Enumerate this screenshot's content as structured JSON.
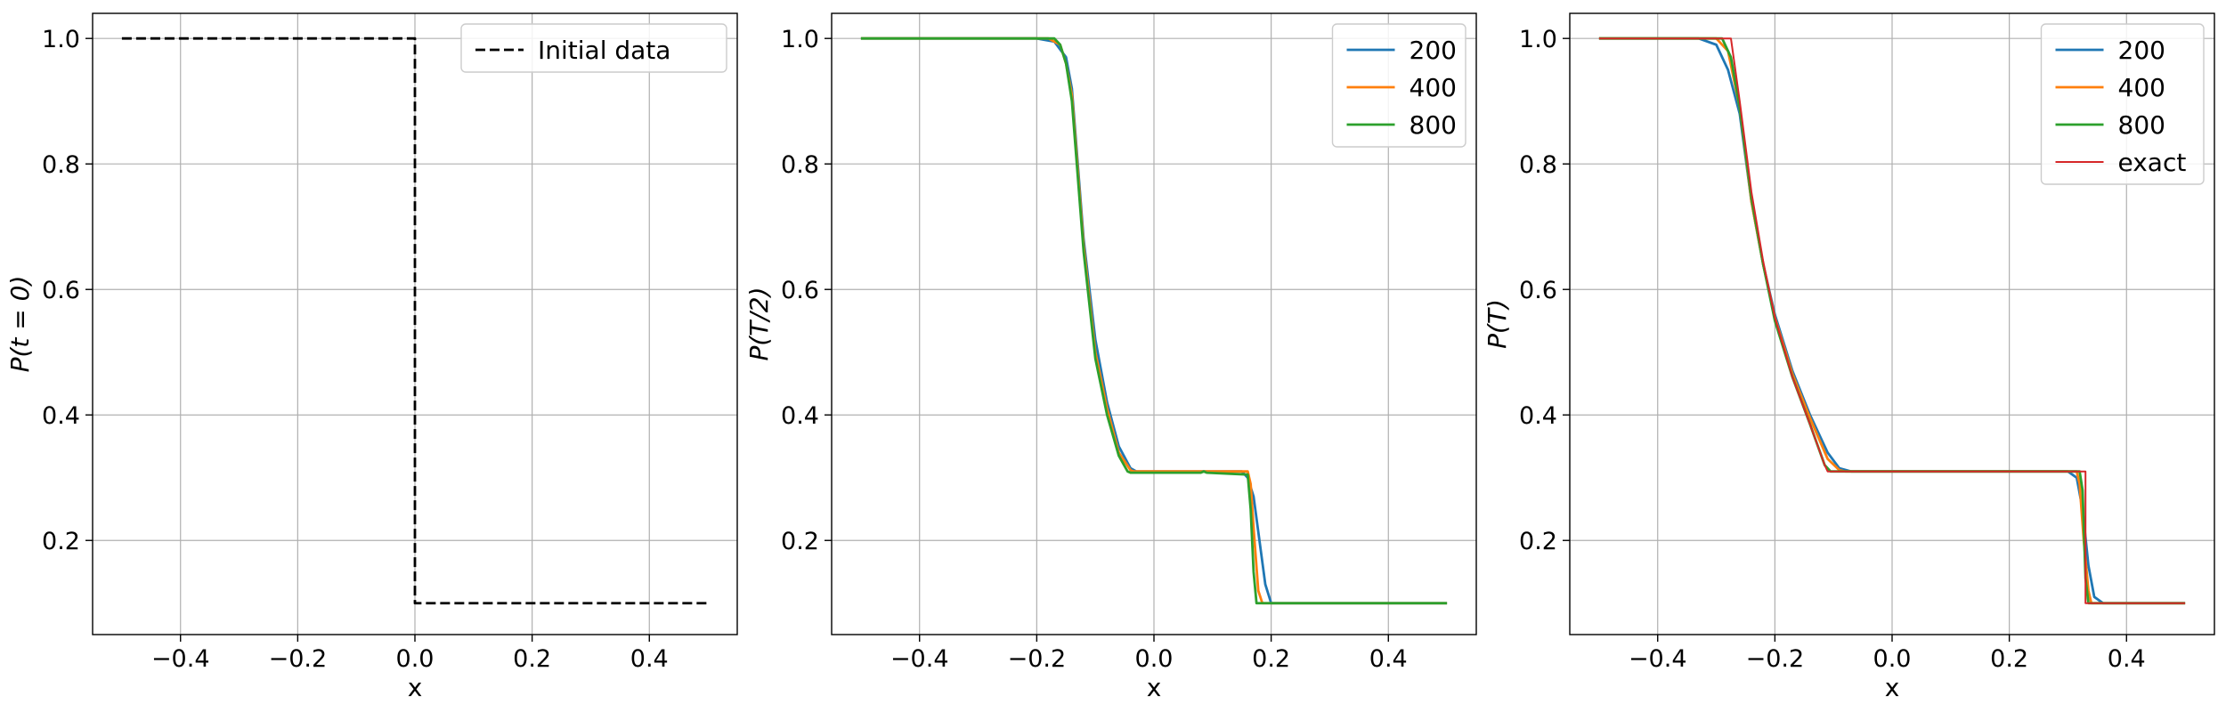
{
  "chart_data": [
    {
      "type": "line",
      "xlabel": "x",
      "ylabel": "P(t = 0)",
      "xlim": [
        -0.55,
        0.55
      ],
      "ylim": [
        0.05,
        1.04
      ],
      "xticks": [
        -0.4,
        -0.2,
        0.0,
        0.2,
        0.4
      ],
      "xtick_labels": [
        "−0.4",
        "−0.2",
        "0.0",
        "0.2",
        "0.4"
      ],
      "yticks": [
        0.2,
        0.4,
        0.6,
        0.8,
        1.0
      ],
      "ytick_labels": [
        "0.2",
        "0.4",
        "0.6",
        "0.8",
        "1.0"
      ],
      "grid": true,
      "legend": "top-right",
      "series": [
        {
          "name": "Initial data",
          "color": "#000000",
          "dash": "dashed",
          "x": [
            -0.5,
            0.0,
            0.0,
            0.5
          ],
          "y": [
            1.0,
            1.0,
            0.1,
            0.1
          ]
        }
      ]
    },
    {
      "type": "line",
      "xlabel": "x",
      "ylabel": "P(T/2)",
      "xlim": [
        -0.55,
        0.55
      ],
      "ylim": [
        0.05,
        1.04
      ],
      "xticks": [
        -0.4,
        -0.2,
        0.0,
        0.2,
        0.4
      ],
      "xtick_labels": [
        "−0.4",
        "−0.2",
        "0.0",
        "0.2",
        "0.4"
      ],
      "yticks": [
        0.2,
        0.4,
        0.6,
        0.8,
        1.0
      ],
      "ytick_labels": [
        "0.2",
        "0.4",
        "0.6",
        "0.8",
        "1.0"
      ],
      "grid": true,
      "legend": "top-right",
      "series": [
        {
          "name": "200",
          "color": "#1f77b4",
          "x": [
            -0.5,
            -0.2,
            -0.17,
            -0.15,
            -0.14,
            -0.13,
            -0.12,
            -0.1,
            -0.08,
            -0.06,
            -0.04,
            -0.03,
            0.0,
            0.08,
            0.15,
            0.16,
            0.17,
            0.18,
            0.19,
            0.2,
            0.5
          ],
          "y": [
            1.0,
            1.0,
            0.995,
            0.97,
            0.92,
            0.8,
            0.68,
            0.52,
            0.42,
            0.35,
            0.315,
            0.31,
            0.31,
            0.31,
            0.31,
            0.3,
            0.27,
            0.2,
            0.13,
            0.1,
            0.1
          ]
        },
        {
          "name": "400",
          "color": "#ff7f0e",
          "x": [
            -0.5,
            -0.18,
            -0.16,
            -0.15,
            -0.14,
            -0.13,
            -0.12,
            -0.1,
            -0.08,
            -0.06,
            -0.04,
            -0.035,
            0.0,
            0.08,
            0.16,
            0.165,
            0.17,
            0.178,
            0.185,
            0.5
          ],
          "y": [
            1.0,
            1.0,
            0.99,
            0.96,
            0.91,
            0.79,
            0.67,
            0.5,
            0.41,
            0.34,
            0.312,
            0.31,
            0.31,
            0.31,
            0.31,
            0.29,
            0.22,
            0.12,
            0.1,
            0.1
          ]
        },
        {
          "name": "800",
          "color": "#2ca02c",
          "x": [
            -0.5,
            -0.17,
            -0.16,
            -0.15,
            -0.14,
            -0.13,
            -0.12,
            -0.1,
            -0.08,
            -0.06,
            -0.045,
            -0.04,
            0.0,
            0.08,
            0.085,
            0.09,
            0.16,
            0.165,
            0.17,
            0.175,
            0.5
          ],
          "y": [
            1.0,
            1.0,
            0.99,
            0.96,
            0.9,
            0.78,
            0.66,
            0.49,
            0.4,
            0.335,
            0.31,
            0.308,
            0.308,
            0.308,
            0.31,
            0.308,
            0.305,
            0.25,
            0.15,
            0.1,
            0.1
          ]
        }
      ]
    },
    {
      "type": "line",
      "xlabel": "x",
      "ylabel": "P(T)",
      "xlim": [
        -0.55,
        0.55
      ],
      "ylim": [
        0.05,
        1.04
      ],
      "xticks": [
        -0.4,
        -0.2,
        0.0,
        0.2,
        0.4
      ],
      "xtick_labels": [
        "−0.4",
        "−0.2",
        "0.0",
        "0.2",
        "0.4"
      ],
      "yticks": [
        0.2,
        0.4,
        0.6,
        0.8,
        1.0
      ],
      "ytick_labels": [
        "0.2",
        "0.4",
        "0.6",
        "0.8",
        "1.0"
      ],
      "grid": true,
      "legend": "top-right",
      "series": [
        {
          "name": "200",
          "color": "#1f77b4",
          "x": [
            -0.5,
            -0.33,
            -0.3,
            -0.28,
            -0.26,
            -0.24,
            -0.22,
            -0.2,
            -0.17,
            -0.14,
            -0.11,
            -0.09,
            -0.07,
            0.0,
            0.2,
            0.3,
            0.315,
            0.325,
            0.335,
            0.345,
            0.36,
            0.5
          ],
          "y": [
            1.0,
            1.0,
            0.99,
            0.95,
            0.88,
            0.74,
            0.64,
            0.56,
            0.47,
            0.4,
            0.34,
            0.315,
            0.31,
            0.31,
            0.31,
            0.31,
            0.3,
            0.25,
            0.16,
            0.11,
            0.1,
            0.1
          ]
        },
        {
          "name": "400",
          "color": "#ff7f0e",
          "x": [
            -0.5,
            -0.3,
            -0.28,
            -0.26,
            -0.24,
            -0.22,
            -0.2,
            -0.17,
            -0.14,
            -0.11,
            -0.09,
            -0.08,
            0.0,
            0.2,
            0.315,
            0.32,
            0.327,
            0.335,
            0.34,
            0.5
          ],
          "y": [
            1.0,
            1.0,
            0.98,
            0.89,
            0.74,
            0.64,
            0.555,
            0.465,
            0.395,
            0.33,
            0.312,
            0.31,
            0.31,
            0.31,
            0.31,
            0.29,
            0.2,
            0.12,
            0.1,
            0.1
          ]
        },
        {
          "name": "800",
          "color": "#2ca02c",
          "x": [
            -0.5,
            -0.29,
            -0.275,
            -0.26,
            -0.24,
            -0.22,
            -0.2,
            -0.17,
            -0.14,
            -0.115,
            -0.105,
            0.0,
            0.2,
            0.32,
            0.325,
            0.33,
            0.335,
            0.5
          ],
          "y": [
            1.0,
            1.0,
            0.97,
            0.89,
            0.745,
            0.64,
            0.55,
            0.46,
            0.385,
            0.32,
            0.31,
            0.31,
            0.31,
            0.31,
            0.28,
            0.14,
            0.1,
            0.1
          ]
        },
        {
          "name": "exact",
          "color": "#d62728",
          "x": [
            -0.5,
            -0.275,
            -0.26,
            -0.24,
            -0.22,
            -0.2,
            -0.17,
            -0.14,
            -0.115,
            -0.11,
            0.33,
            0.33,
            0.5
          ],
          "y": [
            1.0,
            1.0,
            0.9,
            0.755,
            0.645,
            0.555,
            0.46,
            0.385,
            0.32,
            0.31,
            0.31,
            0.1,
            0.1
          ]
        }
      ]
    }
  ]
}
